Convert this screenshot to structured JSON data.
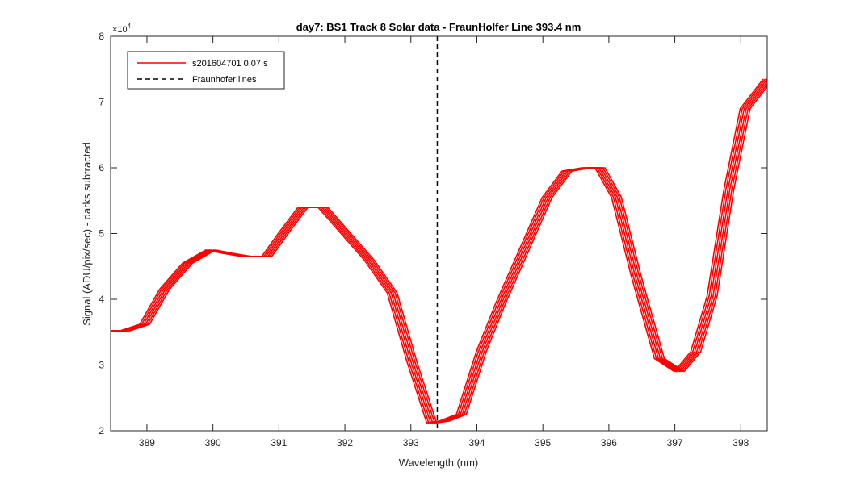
{
  "chart_data": {
    "type": "line",
    "title": "day7: BS1  Track 8 Solar data - FraunHolfer Line 393.4 nm",
    "xlabel": "Wavelength (nm)",
    "ylabel": "Signal (ADU/pix/sec) - darks subtracted",
    "y_multiplier_label": "×10",
    "y_multiplier_exponent": "4",
    "xlim": [
      388.45,
      398.4
    ],
    "ylim": [
      2,
      8
    ],
    "x_ticks": [
      389,
      390,
      391,
      392,
      393,
      394,
      395,
      396,
      397,
      398
    ],
    "y_ticks": [
      2,
      3,
      4,
      5,
      6,
      7,
      8
    ],
    "grid": false,
    "legend_position": "top-left",
    "series": [
      {
        "name": "s201604701 0.07 s",
        "color": "#ff0000",
        "band_offsets_x": [
          -0.06,
          -0.03,
          0,
          0.03,
          0.06,
          0.09
        ],
        "x": [
          388.45,
          388.65,
          388.95,
          389.25,
          389.6,
          389.95,
          390.2,
          390.5,
          390.8,
          391.05,
          391.35,
          391.65,
          392.0,
          392.35,
          392.7,
          393.0,
          393.3,
          393.5,
          393.75,
          394.05,
          394.35,
          394.7,
          395.05,
          395.35,
          395.65,
          395.85,
          396.1,
          396.4,
          396.75,
          397.05,
          397.3,
          397.55,
          397.8,
          398.05,
          398.4
        ],
        "y": [
          3.52,
          3.52,
          3.62,
          4.15,
          4.55,
          4.75,
          4.7,
          4.65,
          4.65,
          5.0,
          5.4,
          5.4,
          5.0,
          4.6,
          4.1,
          3.05,
          2.12,
          2.15,
          2.25,
          3.2,
          3.95,
          4.75,
          5.55,
          5.95,
          6.0,
          6.0,
          5.55,
          4.35,
          3.1,
          2.9,
          3.2,
          4.05,
          5.65,
          6.9,
          7.35
        ]
      },
      {
        "name": "Fraunhofer lines",
        "color": "#000000",
        "style": "dashed",
        "vline_x": 393.4
      }
    ]
  }
}
